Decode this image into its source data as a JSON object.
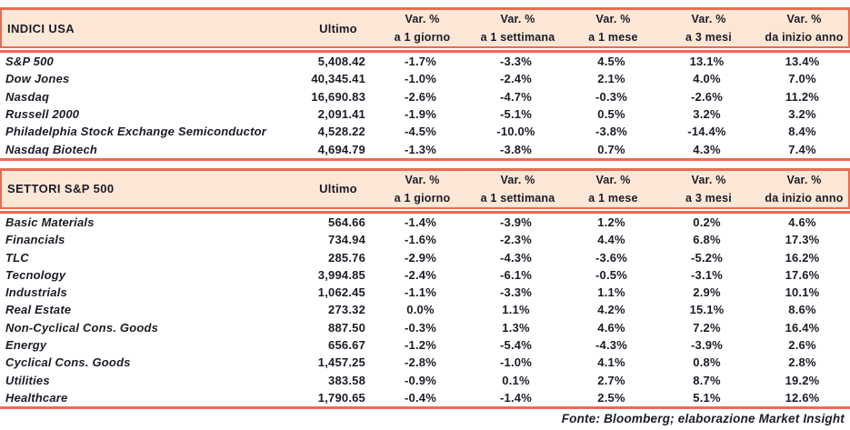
{
  "colors": {
    "line": "#ec6b51",
    "band": "#fce6d6",
    "ink": "#1c1c26"
  },
  "columns": {
    "ultimo": "Ultimo",
    "var_top": "Var. %",
    "var_subs": [
      "a 1 giorno",
      "a 1 settimana",
      "a 1 mese",
      "a 3 mesi",
      "da inizio anno"
    ]
  },
  "tables": [
    {
      "title": "INDICI USA",
      "rows": [
        {
          "name": "S&P 500",
          "ultimo": "5,408.42",
          "vars": [
            "-1.7%",
            "-3.3%",
            "4.5%",
            "13.1%",
            "13.4%"
          ]
        },
        {
          "name": "Dow Jones",
          "ultimo": "40,345.41",
          "vars": [
            "-1.0%",
            "-2.4%",
            "2.1%",
            "4.0%",
            "7.0%"
          ]
        },
        {
          "name": "Nasdaq",
          "ultimo": "16,690.83",
          "vars": [
            "-2.6%",
            "-4.7%",
            "-0.3%",
            "-2.6%",
            "11.2%"
          ]
        },
        {
          "name": "Russell 2000",
          "ultimo": "2,091.41",
          "vars": [
            "-1.9%",
            "-5.1%",
            "0.5%",
            "3.2%",
            "3.2%"
          ]
        },
        {
          "name": "Philadelphia Stock Exchange Semiconductor",
          "ultimo": "4,528.22",
          "vars": [
            "-4.5%",
            "-10.0%",
            "-3.8%",
            "-14.4%",
            "8.4%"
          ]
        },
        {
          "name": "Nasdaq Biotech",
          "ultimo": "4,694.79",
          "vars": [
            "-1.3%",
            "-3.8%",
            "0.7%",
            "4.3%",
            "7.4%"
          ]
        }
      ]
    },
    {
      "title": "SETTORI S&P 500",
      "rows": [
        {
          "name": "Basic Materials",
          "ultimo": "564.66",
          "vars": [
            "-1.4%",
            "-3.9%",
            "1.2%",
            "0.2%",
            "4.6%"
          ]
        },
        {
          "name": "Financials",
          "ultimo": "734.94",
          "vars": [
            "-1.6%",
            "-2.3%",
            "4.4%",
            "6.8%",
            "17.3%"
          ]
        },
        {
          "name": "TLC",
          "ultimo": "285.76",
          "vars": [
            "-2.9%",
            "-4.3%",
            "-3.6%",
            "-5.2%",
            "16.2%"
          ]
        },
        {
          "name": "Tecnology",
          "ultimo": "3,994.85",
          "vars": [
            "-2.4%",
            "-6.1%",
            "-0.5%",
            "-3.1%",
            "17.6%"
          ]
        },
        {
          "name": "Industrials",
          "ultimo": "1,062.45",
          "vars": [
            "-1.1%",
            "-3.3%",
            "1.1%",
            "2.9%",
            "10.1%"
          ]
        },
        {
          "name": "Real Estate",
          "ultimo": "273.32",
          "vars": [
            "0.0%",
            "1.1%",
            "4.2%",
            "15.1%",
            "8.6%"
          ]
        },
        {
          "name": "Non-Cyclical Cons. Goods",
          "ultimo": "887.50",
          "vars": [
            "-0.3%",
            "1.3%",
            "4.6%",
            "7.2%",
            "16.4%"
          ]
        },
        {
          "name": "Energy",
          "ultimo": "656.67",
          "vars": [
            "-1.2%",
            "-5.4%",
            "-4.3%",
            "-3.9%",
            "2.6%"
          ]
        },
        {
          "name": "Cyclical Cons. Goods",
          "ultimo": "1,457.25",
          "vars": [
            "-2.8%",
            "-1.0%",
            "4.1%",
            "0.8%",
            "2.8%"
          ]
        },
        {
          "name": "Utilities",
          "ultimo": "383.58",
          "vars": [
            "-0.9%",
            "0.1%",
            "2.7%",
            "8.7%",
            "19.2%"
          ]
        },
        {
          "name": "Healthcare",
          "ultimo": "1,790.65",
          "vars": [
            "-0.4%",
            "-1.4%",
            "2.5%",
            "5.1%",
            "12.6%"
          ]
        }
      ]
    }
  ],
  "footer": "Fonte: Bloomberg; elaborazione Market Insight",
  "chart_data": [
    {
      "type": "table",
      "title": "INDICI USA",
      "columns": [
        "Ultimo",
        "Var. % a 1 giorno",
        "Var. % a 1 settimana",
        "Var. % a 1 mese",
        "Var. % a 3 mesi",
        "Var. % da inizio anno"
      ],
      "rows": [
        [
          "S&P 500",
          5408.42,
          -1.7,
          -3.3,
          4.5,
          13.1,
          13.4
        ],
        [
          "Dow Jones",
          40345.41,
          -1.0,
          -2.4,
          2.1,
          4.0,
          7.0
        ],
        [
          "Nasdaq",
          16690.83,
          -2.6,
          -4.7,
          -0.3,
          -2.6,
          11.2
        ],
        [
          "Russell 2000",
          2091.41,
          -1.9,
          -5.1,
          0.5,
          3.2,
          3.2
        ],
        [
          "Philadelphia Stock Exchange Semiconductor",
          4528.22,
          -4.5,
          -10.0,
          -3.8,
          -14.4,
          8.4
        ],
        [
          "Nasdaq Biotech",
          4694.79,
          -1.3,
          -3.8,
          0.7,
          4.3,
          7.4
        ]
      ]
    },
    {
      "type": "table",
      "title": "SETTORI S&P 500",
      "columns": [
        "Ultimo",
        "Var. % a 1 giorno",
        "Var. % a 1 settimana",
        "Var. % a 1 mese",
        "Var. % a 3 mesi",
        "Var. % da inizio anno"
      ],
      "rows": [
        [
          "Basic Materials",
          564.66,
          -1.4,
          -3.9,
          1.2,
          0.2,
          4.6
        ],
        [
          "Financials",
          734.94,
          -1.6,
          -2.3,
          4.4,
          6.8,
          17.3
        ],
        [
          "TLC",
          285.76,
          -2.9,
          -4.3,
          -3.6,
          -5.2,
          16.2
        ],
        [
          "Tecnology",
          3994.85,
          -2.4,
          -6.1,
          -0.5,
          -3.1,
          17.6
        ],
        [
          "Industrials",
          1062.45,
          -1.1,
          -3.3,
          1.1,
          2.9,
          10.1
        ],
        [
          "Real Estate",
          273.32,
          0.0,
          1.1,
          4.2,
          15.1,
          8.6
        ],
        [
          "Non-Cyclical Cons. Goods",
          887.5,
          -0.3,
          1.3,
          4.6,
          7.2,
          16.4
        ],
        [
          "Energy",
          656.67,
          -1.2,
          -5.4,
          -4.3,
          -3.9,
          2.6
        ],
        [
          "Cyclical Cons. Goods",
          1457.25,
          -2.8,
          -1.0,
          4.1,
          0.8,
          2.8
        ],
        [
          "Utilities",
          383.58,
          -0.9,
          0.1,
          2.7,
          8.7,
          19.2
        ],
        [
          "Healthcare",
          1790.65,
          -0.4,
          -1.4,
          2.5,
          5.1,
          12.6
        ]
      ]
    }
  ]
}
